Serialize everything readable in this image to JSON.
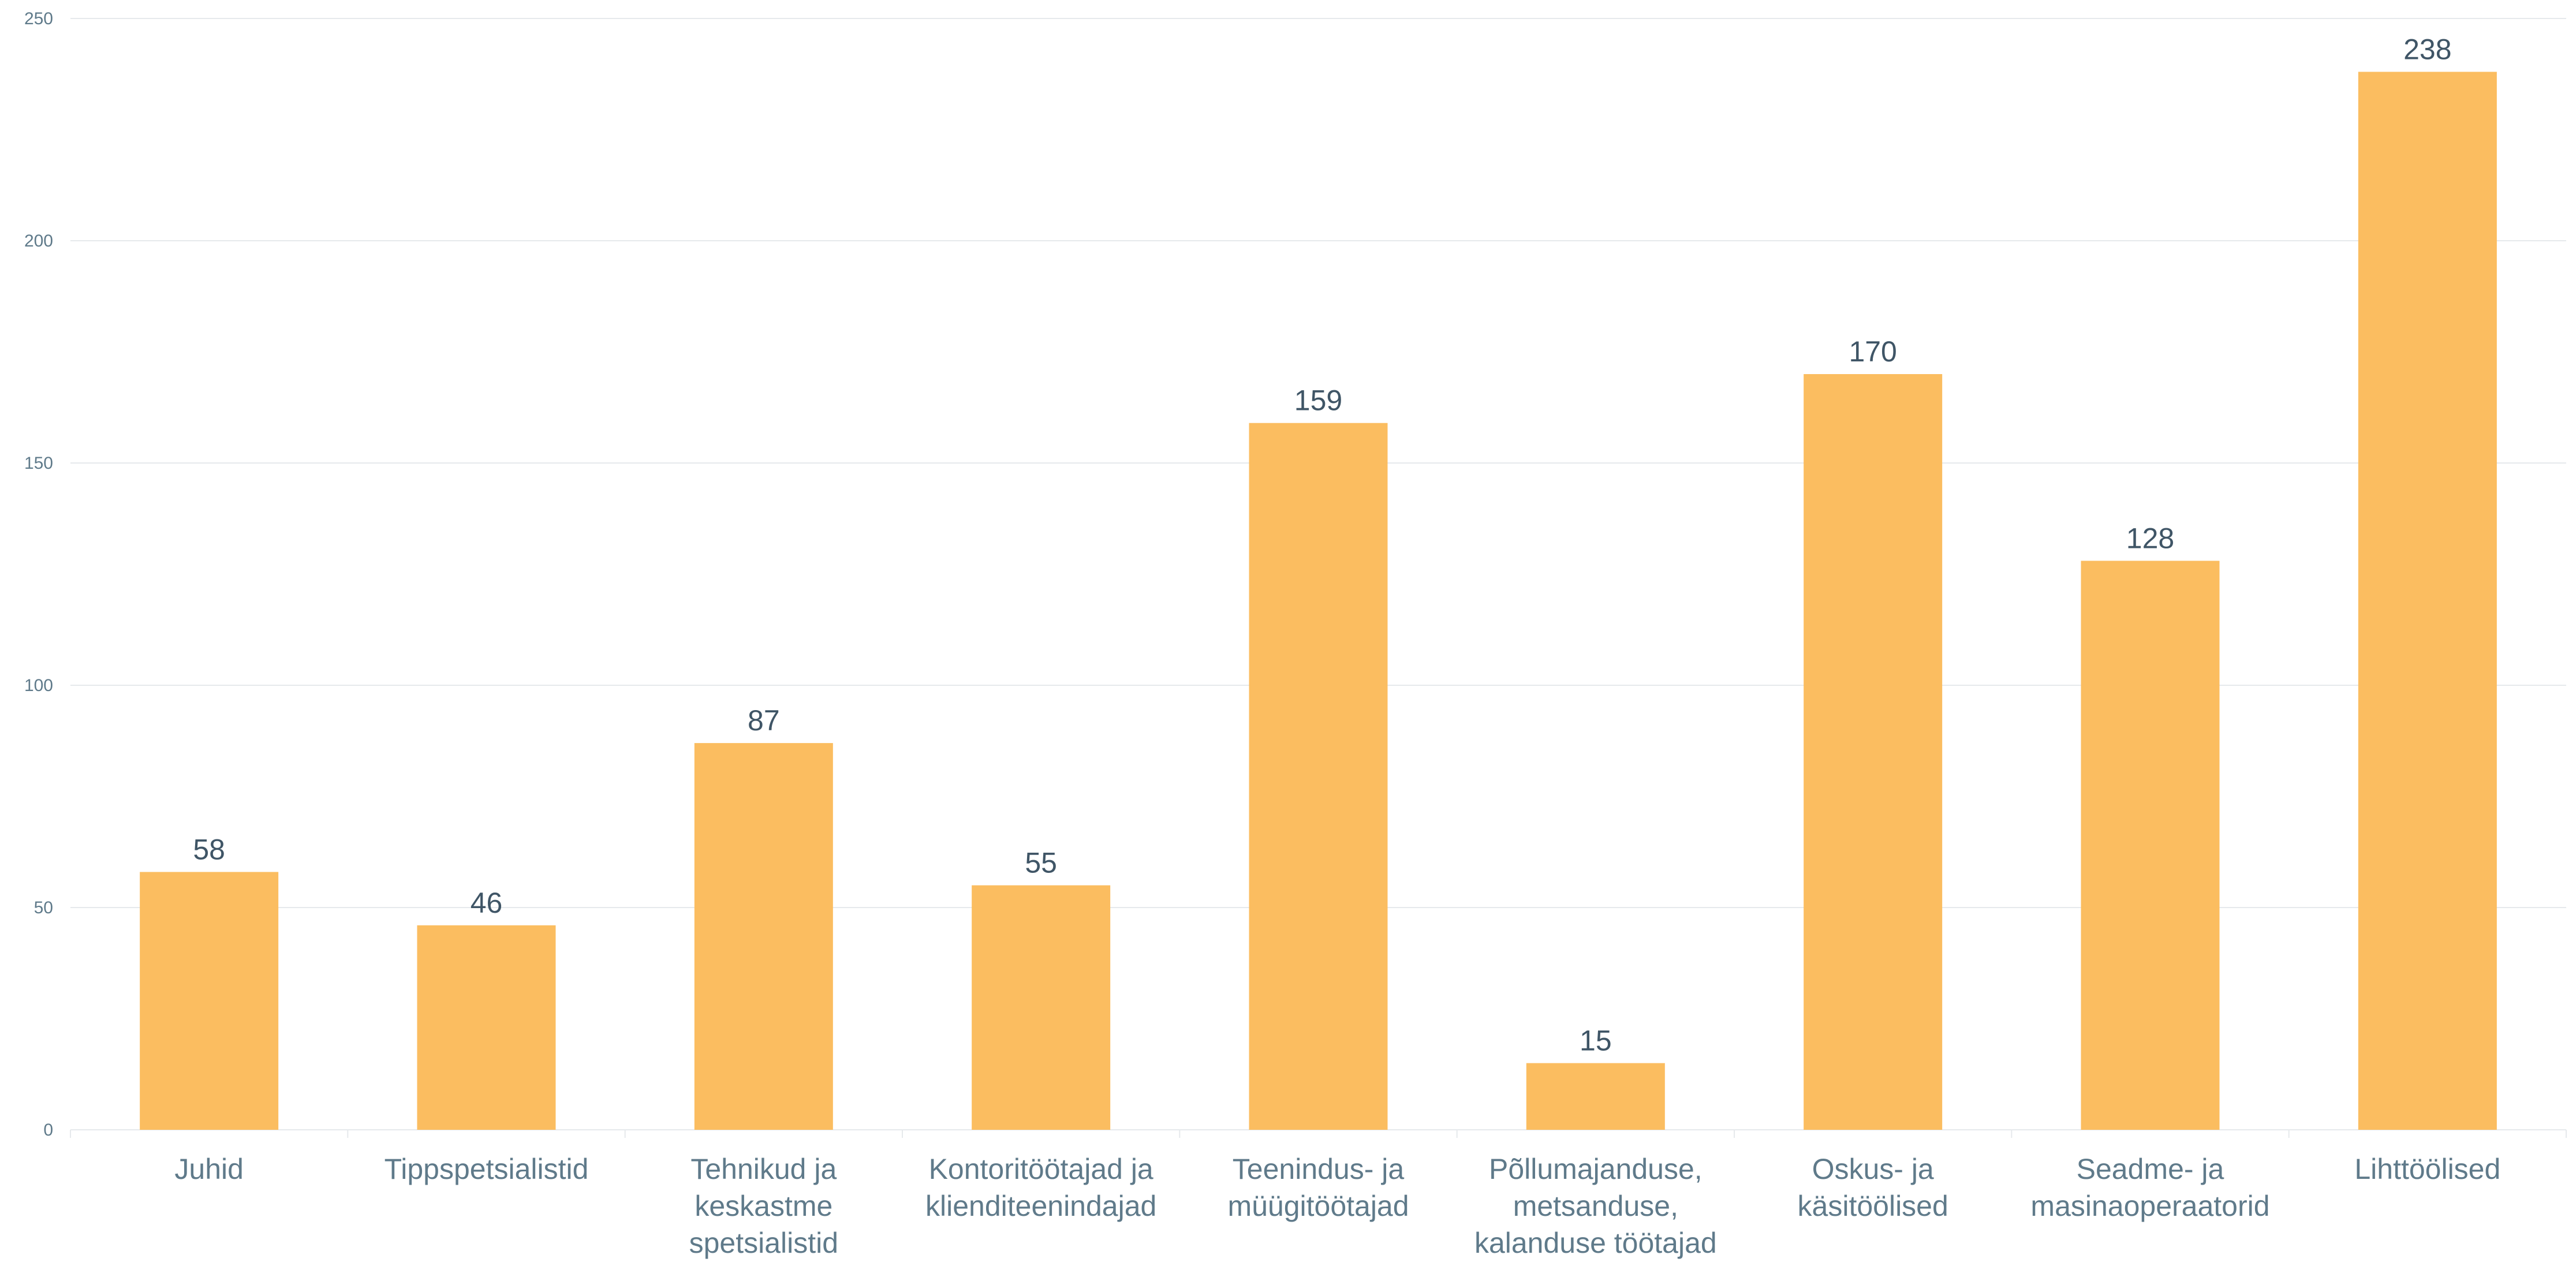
{
  "chart_data": {
    "type": "bar",
    "title": "",
    "xlabel": "",
    "ylabel": "",
    "ylim": [
      0,
      250
    ],
    "yticks": [
      0,
      50,
      100,
      150,
      200,
      250
    ],
    "grid": true,
    "legend": "none",
    "bar_color": "#FBBD60",
    "grid_color": "#E6E9EC",
    "axis_text_color": "#5F7A8A",
    "label_color": "#3F5566",
    "categories": [
      [
        "Juhid"
      ],
      [
        "Tippspetsialistid"
      ],
      [
        "Tehnikud ja",
        "keskastme",
        "spetsialistid"
      ],
      [
        "Kontoritöötajad ja",
        "klienditeenindajad"
      ],
      [
        "Teenindus- ja",
        "müügitöötajad"
      ],
      [
        "Põllumajanduse,",
        "metsanduse,",
        "kalanduse töötajad"
      ],
      [
        "Oskus- ja",
        "käsitöölised"
      ],
      [
        "Seadme- ja",
        "masinaoperaatorid"
      ],
      [
        "Lihttöölised"
      ]
    ],
    "values": [
      58,
      46,
      87,
      55,
      159,
      15,
      170,
      128,
      238
    ]
  }
}
